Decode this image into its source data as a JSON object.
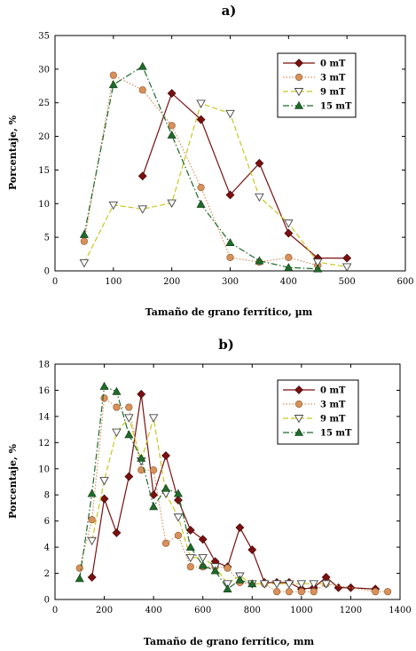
{
  "chart_data": [
    {
      "type": "line",
      "title": "a)",
      "xlabel": "Tamaño de grano ferrítico, µm",
      "ylabel": "Porcentaje, %",
      "xlim": [
        0,
        600
      ],
      "ylim": [
        0,
        35
      ],
      "xticks": [
        0,
        100,
        200,
        300,
        400,
        500,
        600
      ],
      "yticks": [
        0,
        5,
        10,
        15,
        20,
        25,
        30,
        35
      ],
      "grid": false,
      "legend_position": "top-right",
      "series": [
        {
          "name": "0 mT",
          "color": "#7a1010",
          "marker": "diamond",
          "dash": "solid",
          "x": [
            150,
            200,
            250,
            300,
            350,
            400,
            450,
            500
          ],
          "y": [
            14.1,
            26.4,
            22.5,
            11.3,
            16.0,
            5.6,
            1.9,
            1.9
          ]
        },
        {
          "name": "3 mT",
          "color": "#d9905a",
          "marker": "circle",
          "dash": "dotted",
          "x": [
            50,
            100,
            150,
            200,
            250,
            300,
            350,
            400,
            450
          ],
          "y": [
            4.4,
            29.1,
            26.9,
            21.6,
            12.4,
            2.0,
            1.3,
            2.0,
            0.8
          ]
        },
        {
          "name": "9 mT",
          "color": "#c8c820",
          "marker": "triangle-down",
          "dash": "dashed",
          "x": [
            50,
            100,
            150,
            200,
            250,
            300,
            350,
            400,
            450,
            500
          ],
          "y": [
            1.2,
            9.8,
            9.2,
            10.1,
            24.9,
            23.4,
            11.0,
            7.1,
            1.3,
            0.6
          ]
        },
        {
          "name": "15 mT",
          "color": "#1f6b2a",
          "marker": "triangle-up",
          "dash": "dashdot",
          "x": [
            50,
            100,
            150,
            200,
            250,
            300,
            350,
            400,
            450
          ],
          "y": [
            5.4,
            27.7,
            30.4,
            20.2,
            9.9,
            4.2,
            1.5,
            0.5,
            0.3
          ]
        }
      ]
    },
    {
      "type": "line",
      "title": "b)",
      "xlabel": "Tamaño de grano ferrítico, mm",
      "ylabel": "Porcentaje, %",
      "xlim": [
        0,
        1400
      ],
      "ylim": [
        0,
        18
      ],
      "xticks": [
        0,
        200,
        400,
        600,
        800,
        1000,
        1200,
        1400
      ],
      "yticks": [
        0,
        2,
        4,
        6,
        8,
        10,
        12,
        14,
        16,
        18
      ],
      "grid": false,
      "legend_position": "top-right",
      "series": [
        {
          "name": "0 mT",
          "color": "#7a1010",
          "marker": "diamond",
          "dash": "solid",
          "x": [
            150,
            200,
            250,
            300,
            350,
            400,
            450,
            500,
            550,
            600,
            650,
            700,
            750,
            800,
            850,
            900,
            950,
            1000,
            1050,
            1100,
            1150,
            1200,
            1300
          ],
          "y": [
            1.7,
            7.7,
            5.1,
            9.4,
            15.7,
            8.0,
            11.0,
            7.6,
            5.3,
            4.6,
            2.9,
            2.5,
            5.5,
            3.8,
            1.3,
            1.3,
            1.3,
            0.8,
            0.9,
            1.7,
            0.9,
            0.9,
            0.8
          ]
        },
        {
          "name": "3 mT",
          "color": "#d9905a",
          "marker": "circle",
          "dash": "dotted",
          "x": [
            100,
            150,
            200,
            250,
            300,
            350,
            400,
            450,
            500,
            550,
            600,
            650,
            700,
            750,
            800,
            850,
            900,
            950,
            1000,
            1050,
            1100,
            1300,
            1350
          ],
          "y": [
            2.4,
            6.1,
            15.4,
            14.7,
            14.7,
            9.9,
            9.9,
            4.3,
            4.9,
            2.5,
            2.5,
            2.5,
            2.4,
            1.3,
            1.2,
            1.2,
            0.6,
            0.6,
            0.6,
            0.6,
            1.2,
            0.6,
            0.6
          ]
        },
        {
          "name": "9 mT",
          "color": "#c8c820",
          "marker": "triangle-down",
          "dash": "dashed",
          "x": [
            150,
            200,
            250,
            300,
            350,
            400,
            450,
            500,
            550,
            600,
            650,
            700,
            750,
            800,
            850,
            900,
            950,
            1000,
            1050,
            1100
          ],
          "y": [
            4.5,
            9.1,
            12.8,
            13.9,
            10.6,
            13.9,
            8.1,
            6.3,
            3.2,
            3.2,
            2.5,
            1.2,
            1.8,
            1.2,
            1.2,
            1.2,
            1.2,
            1.2,
            1.2,
            1.2
          ]
        },
        {
          "name": "15 mT",
          "color": "#1f6b2a",
          "marker": "triangle-up",
          "dash": "dashdot",
          "x": [
            100,
            150,
            200,
            250,
            300,
            350,
            400,
            450,
            500,
            550,
            600,
            650,
            700,
            750,
            800
          ],
          "y": [
            1.6,
            8.1,
            16.3,
            15.9,
            12.6,
            10.8,
            7.1,
            8.5,
            8.1,
            4.0,
            2.6,
            2.2,
            0.8,
            1.5,
            1.2
          ]
        }
      ]
    }
  ]
}
